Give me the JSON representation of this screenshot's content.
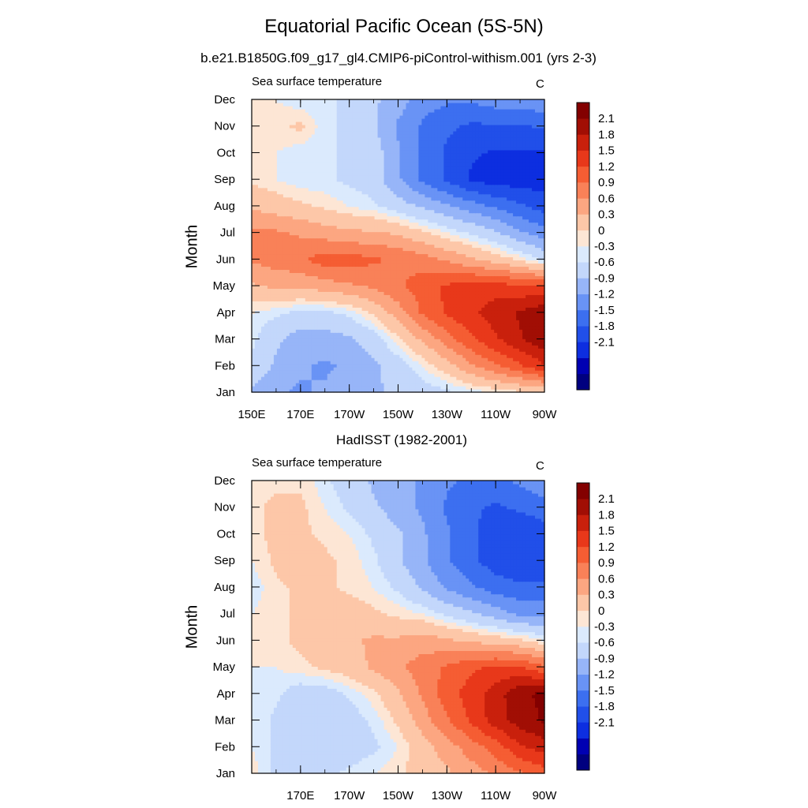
{
  "title": "Equatorial Pacific Ocean (5S-5N)",
  "subtitle": "b.e21.B1850G.f09_g17_gl4.CMIP6-piControl-withism.001 (yrs 2-3)",
  "panel2_heading": "HadISST (1982-2001)",
  "colors": {
    "levels": [
      "#00007f",
      "#0000b2",
      "#0d2ee0",
      "#214fe9",
      "#3c6ff0",
      "#6993f5",
      "#97b5f8",
      "#c3d7fb",
      "#dbeafd",
      "#fde6d5",
      "#fdc7a8",
      "#fca681",
      "#f98158",
      "#f55d33",
      "#e8381a",
      "#c9200c",
      "#a10e04",
      "#830000"
    ]
  },
  "chart_data": [
    {
      "type": "heatmap",
      "panel_label": "Sea surface temperature",
      "units": "C",
      "ylabel": "Month",
      "x_ticks": [
        "150E",
        "170E",
        "170W",
        "150W",
        "130W",
        "110W",
        "90W"
      ],
      "y_ticks": [
        "Jan",
        "Feb",
        "Mar",
        "Apr",
        "May",
        "Jun",
        "Jul",
        "Aug",
        "Sep",
        "Oct",
        "Nov",
        "Dec"
      ],
      "colorbar_labels": [
        "2.1",
        "1.8",
        "1.5",
        "1.2",
        "0.9",
        "0.6",
        "0.3",
        "0",
        "-0.3",
        "-0.6",
        "-0.9",
        "-1.2",
        "-1.5",
        "-1.8",
        "-2.1"
      ],
      "xlim_deg_east": [
        150,
        270
      ],
      "months_sampled": [
        "Jan",
        "Feb",
        "Mar",
        "Apr",
        "May",
        "Jun",
        "Jul",
        "Aug",
        "Sep",
        "Oct",
        "Nov",
        "Dec"
      ],
      "lon_sampled_deg_east": [
        150,
        160,
        170,
        180,
        190,
        200,
        210,
        220,
        230,
        240,
        250,
        260,
        270
      ],
      "values": [
        [
          -0.5,
          -0.7,
          -0.8,
          -0.7,
          -0.6,
          -0.5,
          -0.4,
          -0.3,
          -0.2,
          -0.1,
          0.0,
          0.1,
          0.2
        ],
        [
          -0.2,
          -0.5,
          -0.7,
          -0.8,
          -0.7,
          -0.5,
          -0.3,
          0.0,
          0.3,
          0.7,
          1.0,
          1.3,
          1.6
        ],
        [
          -0.1,
          -0.4,
          -0.6,
          -0.6,
          -0.5,
          -0.3,
          0.1,
          0.5,
          0.9,
          1.3,
          1.6,
          1.9,
          2.2
        ],
        [
          0.0,
          -0.1,
          -0.2,
          -0.2,
          -0.1,
          0.2,
          0.6,
          1.1,
          1.4,
          1.6,
          1.8,
          2.0,
          2.2
        ],
        [
          0.4,
          0.5,
          0.5,
          0.6,
          0.7,
          0.8,
          1.0,
          1.2,
          1.4,
          1.5,
          1.5,
          1.4,
          1.4
        ],
        [
          0.8,
          0.9,
          1.0,
          1.2,
          1.2,
          1.1,
          1.0,
          0.9,
          0.7,
          0.5,
          0.3,
          0.1,
          -0.2
        ],
        [
          0.8,
          0.8,
          0.7,
          0.6,
          0.5,
          0.5,
          0.4,
          0.2,
          0.0,
          -0.2,
          -0.4,
          -0.7,
          -0.9
        ],
        [
          0.4,
          0.3,
          0.2,
          0.1,
          0.0,
          -0.1,
          -0.3,
          -0.5,
          -0.7,
          -0.9,
          -1.1,
          -1.3,
          -1.5
        ],
        [
          0.1,
          0.0,
          -0.1,
          -0.1,
          -0.2,
          -0.3,
          -0.7,
          -1.1,
          -1.4,
          -1.7,
          -1.8,
          -1.8,
          -1.8
        ],
        [
          0.1,
          0.0,
          -0.1,
          -0.1,
          -0.2,
          -0.3,
          -0.7,
          -1.1,
          -1.4,
          -1.6,
          -1.7,
          -1.7,
          -1.7
        ],
        [
          0.1,
          0.1,
          0.2,
          -0.1,
          -0.2,
          -0.4,
          -0.8,
          -1.1,
          -1.3,
          -1.4,
          -1.4,
          -1.4,
          -1.3
        ],
        [
          0.1,
          0.0,
          -0.1,
          -0.1,
          -0.2,
          -0.4,
          -0.6,
          -0.9,
          -1.0,
          -1.0,
          -0.9,
          -0.9,
          -0.8
        ]
      ]
    },
    {
      "type": "heatmap",
      "panel_label": "Sea surface temperature",
      "units": "C",
      "ylabel": "Month",
      "x_ticks": [
        "170E",
        "170W",
        "150W",
        "130W",
        "110W",
        "90W"
      ],
      "y_ticks": [
        "Jan",
        "Feb",
        "Mar",
        "Apr",
        "May",
        "Jun",
        "Jul",
        "Aug",
        "Sep",
        "Oct",
        "Nov",
        "Dec"
      ],
      "colorbar_labels": [
        "2.1",
        "1.8",
        "1.5",
        "1.2",
        "0.9",
        "0.6",
        "0.3",
        "0",
        "-0.3",
        "-0.6",
        "-0.9",
        "-1.2",
        "-1.5",
        "-1.8",
        "-2.1"
      ],
      "xlim_deg_east": [
        150,
        270
      ],
      "months_sampled": [
        "Jan",
        "Feb",
        "Mar",
        "Apr",
        "May",
        "Jun",
        "Jul",
        "Aug",
        "Sep",
        "Oct",
        "Nov",
        "Dec"
      ],
      "lon_sampled_deg_east": [
        150,
        160,
        170,
        180,
        190,
        200,
        210,
        220,
        230,
        240,
        250,
        260,
        270
      ],
      "values": [
        [
          0.1,
          -0.2,
          -0.3,
          -0.2,
          -0.1,
          0.0,
          0.1,
          0.3,
          0.4,
          0.6,
          0.8,
          1.0,
          1.2
        ],
        [
          0.0,
          -0.2,
          -0.4,
          -0.4,
          -0.3,
          -0.2,
          0.0,
          0.3,
          0.6,
          0.9,
          1.2,
          1.6,
          1.8
        ],
        [
          0.0,
          -0.2,
          -0.4,
          -0.4,
          -0.3,
          -0.1,
          0.2,
          0.6,
          1.0,
          1.4,
          1.8,
          2.1,
          2.3
        ],
        [
          0.0,
          -0.1,
          -0.3,
          -0.3,
          -0.1,
          0.1,
          0.4,
          0.8,
          1.2,
          1.5,
          1.8,
          2.2,
          2.3
        ],
        [
          0.0,
          0.0,
          0.1,
          0.2,
          0.3,
          0.5,
          0.7,
          0.9,
          1.1,
          1.3,
          1.4,
          1.4,
          1.1
        ],
        [
          0.0,
          0.1,
          0.2,
          0.3,
          0.4,
          0.5,
          0.5,
          0.6,
          0.5,
          0.4,
          0.3,
          0.2,
          0.0
        ],
        [
          0.0,
          0.1,
          0.2,
          0.3,
          0.3,
          0.2,
          0.1,
          0.0,
          -0.2,
          -0.4,
          -0.6,
          -0.8,
          -0.8
        ],
        [
          -0.1,
          0.1,
          0.2,
          0.2,
          0.1,
          0.0,
          -0.2,
          -0.5,
          -0.8,
          -1.0,
          -1.2,
          -1.3,
          -1.3
        ],
        [
          0.0,
          0.2,
          0.4,
          0.2,
          0.1,
          -0.1,
          -0.4,
          -0.7,
          -1.0,
          -1.3,
          -1.5,
          -1.6,
          -1.6
        ],
        [
          0.1,
          0.2,
          0.2,
          0.1,
          0.0,
          -0.2,
          -0.4,
          -0.7,
          -1.0,
          -1.3,
          -1.5,
          -1.6,
          -1.5
        ],
        [
          0.1,
          0.2,
          0.2,
          0.0,
          -0.2,
          -0.4,
          -0.6,
          -0.8,
          -1.1,
          -1.3,
          -1.4,
          -1.3,
          -1.2
        ],
        [
          0.1,
          0.1,
          0.1,
          -0.1,
          -0.3,
          -0.5,
          -0.6,
          -0.8,
          -1.0,
          -1.1,
          -1.1,
          -1.0,
          -0.8
        ]
      ]
    }
  ]
}
